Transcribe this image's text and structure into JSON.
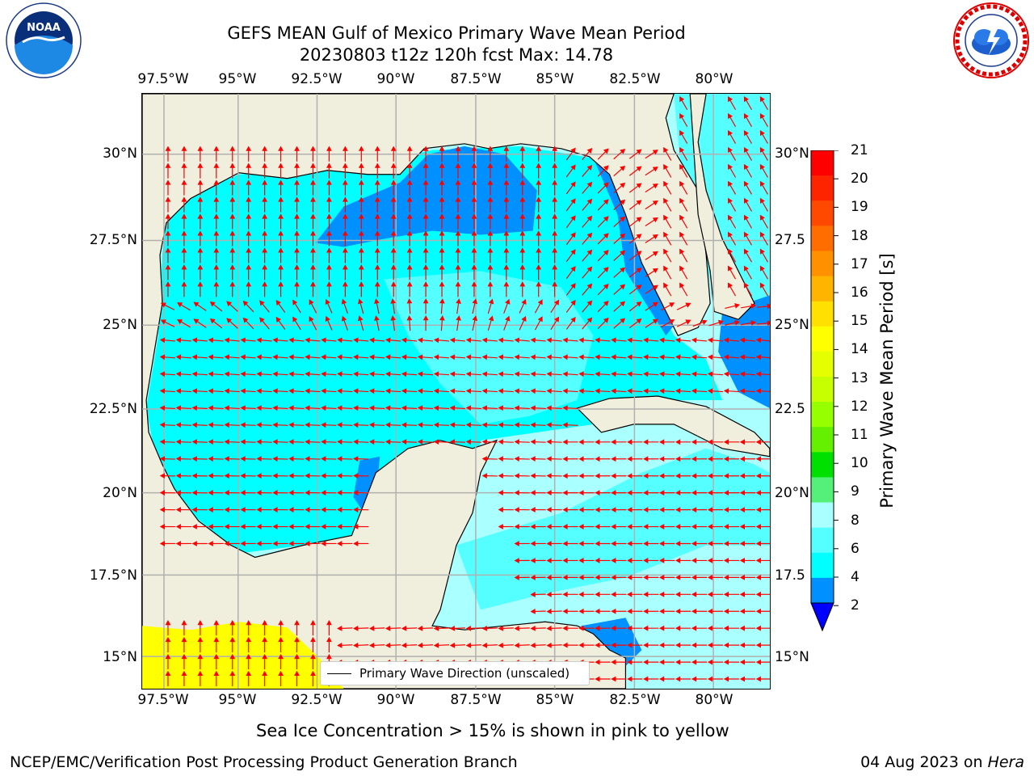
{
  "title_line1": "GEFS MEAN Gulf of Mexico Primary Wave Mean Period",
  "title_line2": "20230803 t12z 120h fcst   Max: 14.78",
  "lon_ticks": [
    "97.5°W",
    "95°W",
    "92.5°W",
    "90°W",
    "87.5°W",
    "85°W",
    "82.5°W",
    "80°W"
  ],
  "lat_ticks": [
    "30°N",
    "27.5°N",
    "25°N",
    "22.5°N",
    "20°N",
    "17.5°N",
    "15°N"
  ],
  "lat_ticks_right": [
    "30°N",
    "27.5",
    "25°N",
    "22.5",
    "20°N",
    "17.5",
    "15°N"
  ],
  "colorbar": {
    "title": "Primary Wave Mean Period [s]",
    "labels": [
      "21",
      "20",
      "19",
      "18",
      "17",
      "16",
      "15",
      "14",
      "13",
      "12",
      "11",
      "10",
      "9",
      "8",
      "6",
      "4",
      "2"
    ],
    "colors": [
      "#ff0000",
      "#ff2400",
      "#ff4800",
      "#ff6c00",
      "#ff9000",
      "#ffb400",
      "#ffe000",
      "#ffff00",
      "#e6ff00",
      "#c8ff00",
      "#96ff00",
      "#64f000",
      "#00e000",
      "#55f07a",
      "#aaffff",
      "#55ffff",
      "#00ffff",
      "#0090ff",
      "#0000ff"
    ]
  },
  "legend": {
    "label": "Primary Wave Direction (unscaled)"
  },
  "note": "Sea Ice Concentration > 15% is shown in pink to yellow",
  "footer_left": "NCEP/EMC/Verification Post Processing Product Generation Branch",
  "footer_right_date": "04 Aug 2023 on ",
  "footer_right_host": "Hera",
  "logos": {
    "left": "noaa-logo",
    "left_text": "NOAA",
    "right": "nws-logo"
  },
  "map_colors": {
    "land": "#f0eedc",
    "pacific": "#ffff00",
    "period_4_6": "#00ffff",
    "period_6_8": "#55ffff",
    "period_8_9": "#aaffff",
    "period_2_4": "#0090ff",
    "arrow": "#ff0000"
  }
}
